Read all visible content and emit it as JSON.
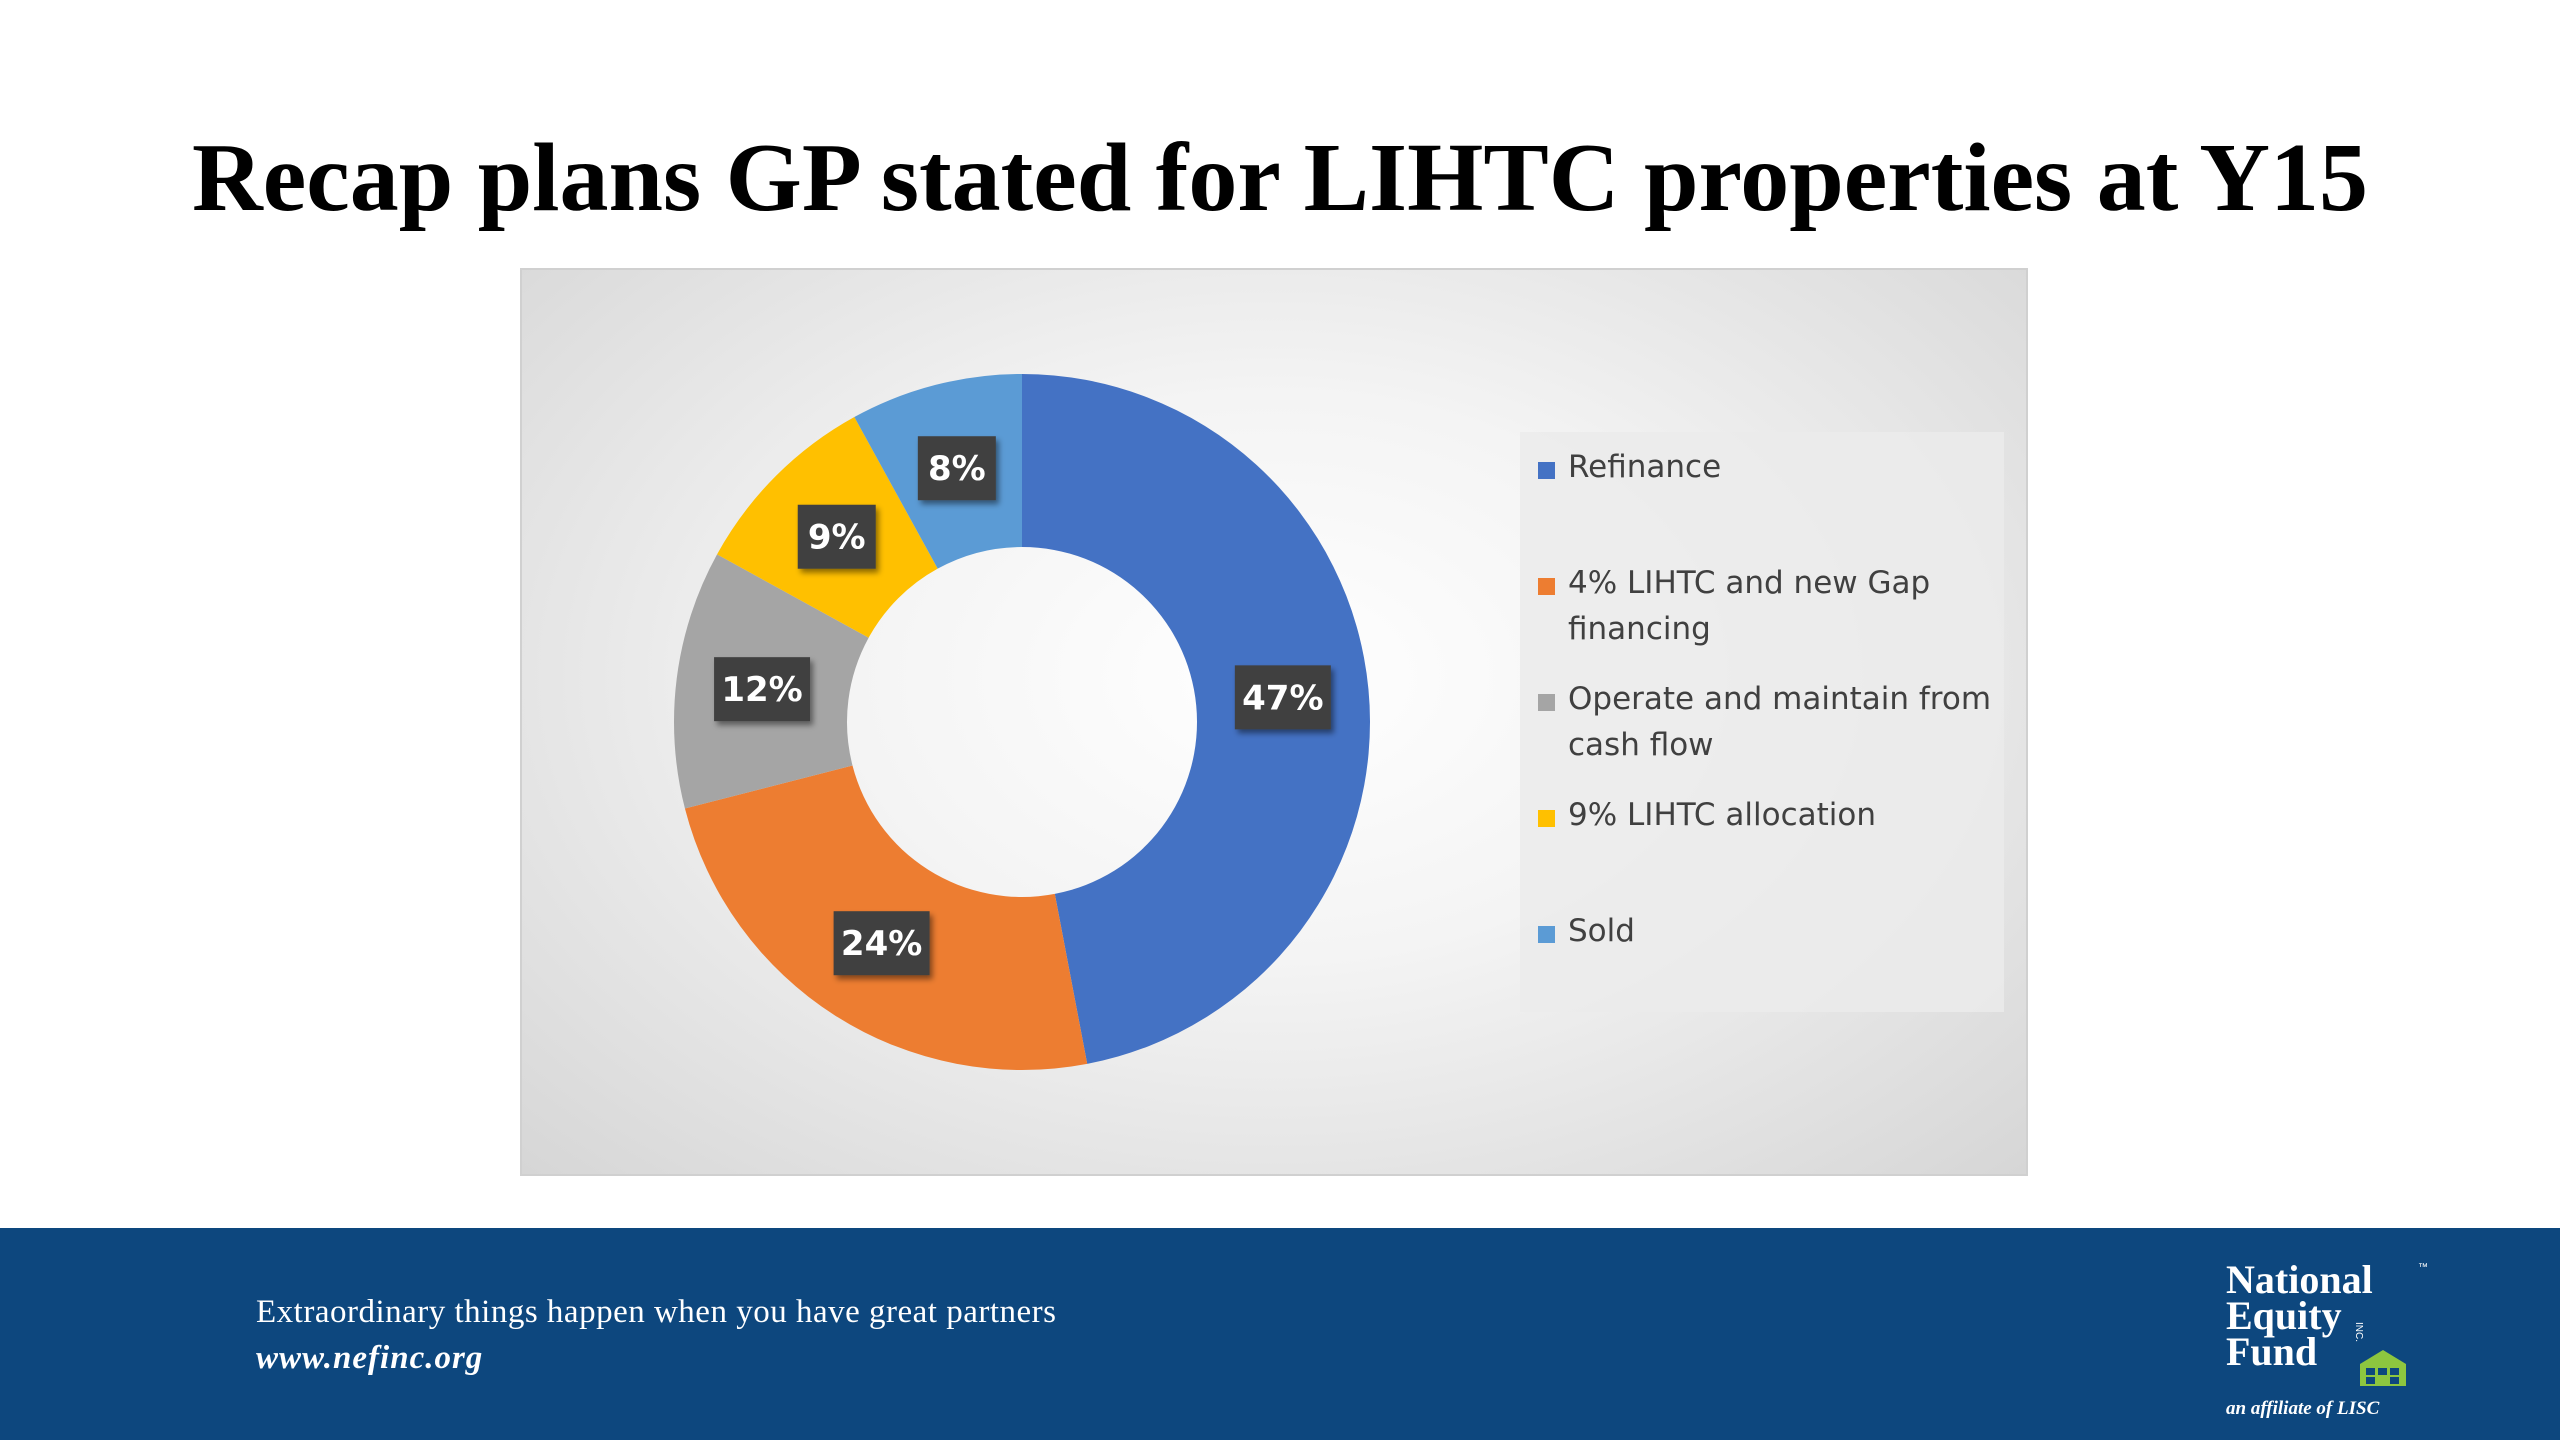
{
  "title": "Recap plans GP stated for LIHTC properties at Y15",
  "chart_data": {
    "type": "pie",
    "variant": "donut",
    "title": "",
    "legend_position": "right",
    "series": [
      {
        "name": "Refinance",
        "value": 47,
        "label": "47%",
        "color": "#4472c4"
      },
      {
        "name": "4% LIHTC and new Gap financing",
        "value": 24,
        "label": "24%",
        "color": "#ed7d31"
      },
      {
        "name": "Operate and maintain from cash flow",
        "value": 12,
        "label": "12%",
        "color": "#a5a5a5"
      },
      {
        "name": "9% LIHTC allocation",
        "value": 9,
        "label": "9%",
        "color": "#ffc000"
      },
      {
        "name": "Sold",
        "value": 8,
        "label": "8%",
        "color": "#5b9bd5"
      }
    ]
  },
  "footer": {
    "tagline": "Extraordinary things happen when you have great partners",
    "website": "www.nefinc.org",
    "logo": {
      "line1": "National",
      "line2": "Equity",
      "line3": "Fund",
      "trademark": "™",
      "inc": "INC.",
      "affiliate": "an affiliate of LISC",
      "icon": "house-icon"
    }
  }
}
